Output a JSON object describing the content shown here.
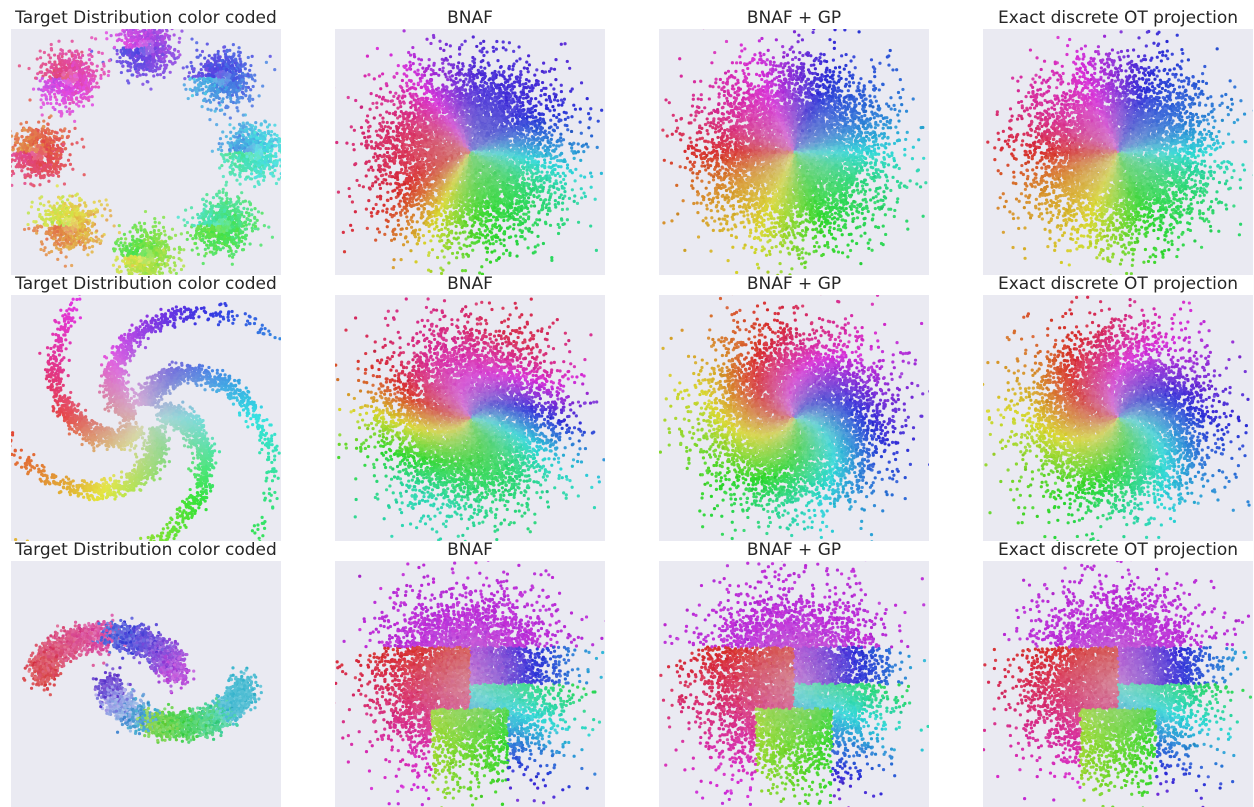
{
  "chart_data": [
    {
      "type": "scatter",
      "title": "Target Distribution color coded",
      "dataset": "eight-gaussians",
      "method": "target",
      "grid": false
    },
    {
      "type": "scatter",
      "title": "BNAF",
      "dataset": "eight-gaussians",
      "method": "bnaf",
      "grid": false
    },
    {
      "type": "scatter",
      "title": "BNAF + GP",
      "dataset": "eight-gaussians",
      "method": "bnaf-gp",
      "grid": false
    },
    {
      "type": "scatter",
      "title": "Exact discrete OT projection",
      "dataset": "eight-gaussians",
      "method": "ot",
      "grid": false
    },
    {
      "type": "scatter",
      "title": "Target Distribution color coded",
      "dataset": "pinwheel",
      "method": "target",
      "grid": false
    },
    {
      "type": "scatter",
      "title": "BNAF",
      "dataset": "pinwheel",
      "method": "bnaf",
      "grid": false
    },
    {
      "type": "scatter",
      "title": "BNAF + GP",
      "dataset": "pinwheel",
      "method": "bnaf-gp",
      "grid": false
    },
    {
      "type": "scatter",
      "title": "Exact discrete OT projection",
      "dataset": "pinwheel",
      "method": "ot",
      "grid": false
    },
    {
      "type": "scatter",
      "title": "Target Distribution color coded",
      "dataset": "two-moons",
      "method": "target",
      "grid": false
    },
    {
      "type": "scatter",
      "title": "BNAF",
      "dataset": "two-moons",
      "method": "bnaf",
      "grid": false
    },
    {
      "type": "scatter",
      "title": "BNAF + GP",
      "dataset": "two-moons",
      "method": "bnaf-gp",
      "grid": false
    },
    {
      "type": "scatter",
      "title": "Exact discrete OT projection",
      "dataset": "two-moons",
      "method": "ot",
      "grid": false
    }
  ]
}
